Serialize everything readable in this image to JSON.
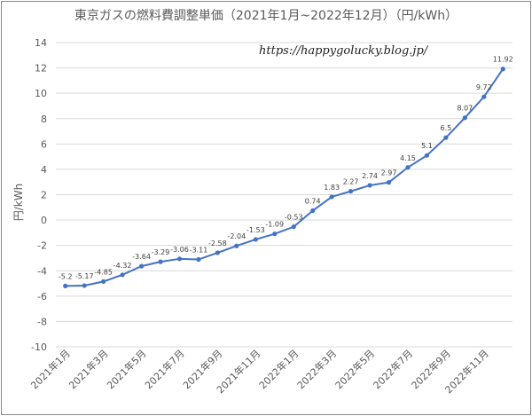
{
  "chart_data": {
    "type": "line",
    "title": "東京ガスの燃料費調整単価（2021年1月~2022年12月）（円/kWh）",
    "annotation": "https://happygolucky.blog.jp/",
    "ylabel": "円/kWh",
    "xlabel": "",
    "ylim": [
      -10,
      14
    ],
    "yticks": [
      -10,
      -8,
      -6,
      -4,
      -2,
      0,
      2,
      4,
      6,
      8,
      10,
      12,
      14
    ],
    "grid": true,
    "legend": "none",
    "line_color": "#4472c4",
    "x": [
      "2021年1月",
      "2021年2月",
      "2021年3月",
      "2021年4月",
      "2021年5月",
      "2021年6月",
      "2021年7月",
      "2021年8月",
      "2021年9月",
      "2021年10月",
      "2021年11月",
      "2021年12月",
      "2022年1月",
      "2022年2月",
      "2022年3月",
      "2022年4月",
      "2022年5月",
      "2022年6月",
      "2022年7月",
      "2022年8月",
      "2022年9月",
      "2022年10月",
      "2022年11月",
      "2022年12月"
    ],
    "xtick_labels": [
      "2021年1月",
      "2021年3月",
      "2021年5月",
      "2021年7月",
      "2021年9月",
      "2021年11月",
      "2022年1月",
      "2022年3月",
      "2022年5月",
      "2022年7月",
      "2022年9月",
      "2022年11月"
    ],
    "values": [
      -5.2,
      -5.17,
      -4.85,
      -4.32,
      -3.64,
      -3.29,
      -3.06,
      -3.11,
      -2.58,
      -2.04,
      -1.53,
      -1.09,
      -0.53,
      0.74,
      1.83,
      2.27,
      2.74,
      2.97,
      4.15,
      5.1,
      6.5,
      8.07,
      9.72,
      11.92
    ],
    "data_labels": [
      "-5.2",
      "-5.17",
      "-4.85",
      "-4.32",
      "-3.64",
      "-3.29",
      "-3.06",
      "-3.11",
      "-2.58",
      "-2.04",
      "-1.53",
      "-1.09",
      "-0.53",
      "0.74",
      "1.83",
      "2.27",
      "2.74",
      "2.97",
      "4.15",
      "5.1",
      "6.5",
      "8.07",
      "9.72",
      "11.92"
    ]
  }
}
